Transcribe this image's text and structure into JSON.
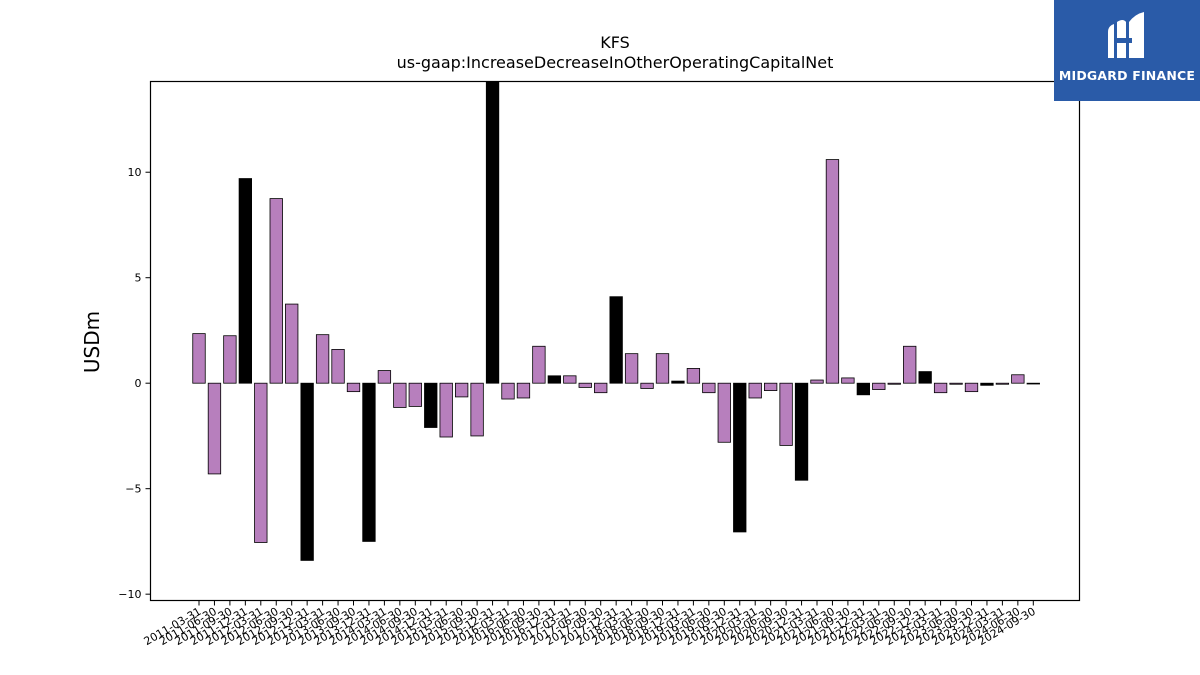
{
  "brand": {
    "name": "MIDGARD FINANCE",
    "bg": "#2a5ba8"
  },
  "chart_data": {
    "type": "bar",
    "title": "KFS",
    "subtitle": "us-gaap:IncreaseDecreaseInOtherOperatingCapitalNet",
    "xlabel": "",
    "ylabel": "USDm",
    "ylim": [
      -10.3,
      14.3
    ],
    "yticks": [
      -10,
      -5,
      0,
      5,
      10
    ],
    "grid": false,
    "colors": {
      "quarter": "#b77fbd",
      "annual": "#000000",
      "edge": "#000000"
    },
    "bar_kind_legend": {
      "q": "quarter",
      "a": "annual"
    },
    "categories": [
      "2011-03-31",
      "2011-06-30",
      "2011-09-30",
      "2011-12-31",
      "2012-03-31",
      "2012-06-30",
      "2012-09-30",
      "2012-12-31",
      "2013-03-31",
      "2013-06-30",
      "2013-09-30",
      "2013-12-31",
      "2014-03-31",
      "2014-06-30",
      "2014-09-30",
      "2014-12-31",
      "2015-03-31",
      "2015-06-30",
      "2015-09-30",
      "2015-12-31",
      "2016-03-31",
      "2016-06-30",
      "2016-09-30",
      "2016-12-31",
      "2017-03-31",
      "2017-06-30",
      "2017-09-30",
      "2017-12-31",
      "2018-03-31",
      "2018-06-30",
      "2018-09-30",
      "2018-12-31",
      "2019-03-31",
      "2019-06-30",
      "2019-09-30",
      "2019-12-31",
      "2020-03-31",
      "2020-06-30",
      "2020-09-30",
      "2020-12-31",
      "2021-03-31",
      "2021-06-30",
      "2021-09-30",
      "2021-12-31",
      "2022-03-31",
      "2022-06-30",
      "2022-09-30",
      "2022-12-31",
      "2023-03-31",
      "2023-06-30",
      "2023-09-30",
      "2023-12-31",
      "2024-03-31",
      "2024-06-30",
      "2024-09-30"
    ],
    "values": [
      2.35,
      -4.3,
      2.25,
      9.7,
      -7.55,
      8.75,
      3.75,
      -8.4,
      2.3,
      1.6,
      -0.4,
      -7.5,
      0.6,
      -1.15,
      -1.1,
      -2.1,
      -2.55,
      -0.65,
      -2.5,
      14.3,
      -0.75,
      -0.7,
      1.75,
      0.35,
      0.35,
      -0.2,
      -0.45,
      4.1,
      1.4,
      -0.25,
      1.4,
      0.1,
      0.7,
      -0.45,
      -2.8,
      -7.05,
      -0.7,
      -0.35,
      -2.95,
      -4.6,
      0.15,
      10.6,
      0.25,
      -0.55,
      -0.3,
      -0.05,
      1.75,
      0.55,
      -0.45,
      -0.05,
      -0.4,
      -0.1,
      -0.05,
      0.4,
      -0.02
    ],
    "kinds": [
      "q",
      "q",
      "q",
      "a",
      "q",
      "q",
      "q",
      "a",
      "q",
      "q",
      "q",
      "a",
      "q",
      "q",
      "q",
      "a",
      "q",
      "q",
      "q",
      "a",
      "q",
      "q",
      "q",
      "a",
      "q",
      "q",
      "q",
      "a",
      "q",
      "q",
      "q",
      "a",
      "q",
      "q",
      "q",
      "a",
      "q",
      "q",
      "q",
      "a",
      "q",
      "q",
      "q",
      "a",
      "q",
      "q",
      "q",
      "a",
      "q",
      "q",
      "q",
      "a",
      "q",
      "q",
      "q"
    ]
  }
}
